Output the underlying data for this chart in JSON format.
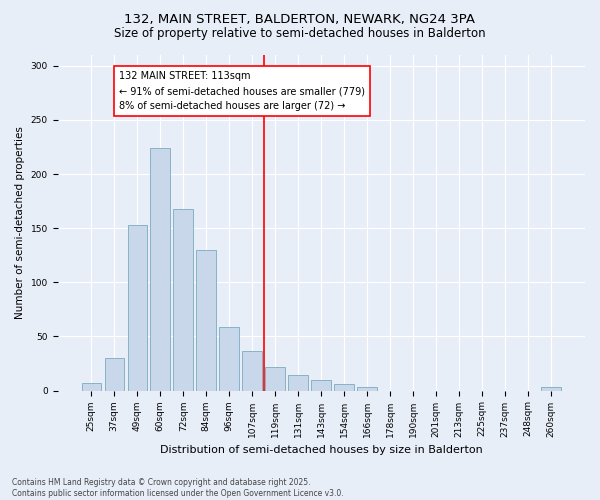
{
  "title1": "132, MAIN STREET, BALDERTON, NEWARK, NG24 3PA",
  "title2": "Size of property relative to semi-detached houses in Balderton",
  "xlabel": "Distribution of semi-detached houses by size in Balderton",
  "ylabel": "Number of semi-detached properties",
  "categories": [
    "25sqm",
    "37sqm",
    "49sqm",
    "60sqm",
    "72sqm",
    "84sqm",
    "96sqm",
    "107sqm",
    "119sqm",
    "131sqm",
    "143sqm",
    "154sqm",
    "166sqm",
    "178sqm",
    "190sqm",
    "201sqm",
    "213sqm",
    "225sqm",
    "237sqm",
    "248sqm",
    "260sqm"
  ],
  "values": [
    7,
    30,
    153,
    224,
    168,
    130,
    59,
    37,
    22,
    14,
    10,
    6,
    3,
    0,
    0,
    0,
    0,
    0,
    0,
    0,
    3
  ],
  "bar_color": "#c8d8ea",
  "bar_edge_color": "#7aaabf",
  "ref_line_x": 7.5,
  "ref_line_label": "132 MAIN STREET: 113sqm",
  "annotation_smaller": "← 91% of semi-detached houses are smaller (779)",
  "annotation_larger": "8% of semi-detached houses are larger (72) →",
  "annotation_box_color": "white",
  "annotation_box_edge": "red",
  "ref_line_color": "red",
  "ylim": [
    0,
    310
  ],
  "yticks": [
    0,
    50,
    100,
    150,
    200,
    250,
    300
  ],
  "footnote": "Contains HM Land Registry data © Crown copyright and database right 2025.\nContains public sector information licensed under the Open Government Licence v3.0.",
  "background_color": "#e8eef8",
  "grid_color": "white",
  "title1_fontsize": 9.5,
  "title2_fontsize": 8.5,
  "xlabel_fontsize": 8,
  "ylabel_fontsize": 7.5,
  "tick_fontsize": 6.5,
  "annot_fontsize": 7,
  "footnote_fontsize": 5.5
}
